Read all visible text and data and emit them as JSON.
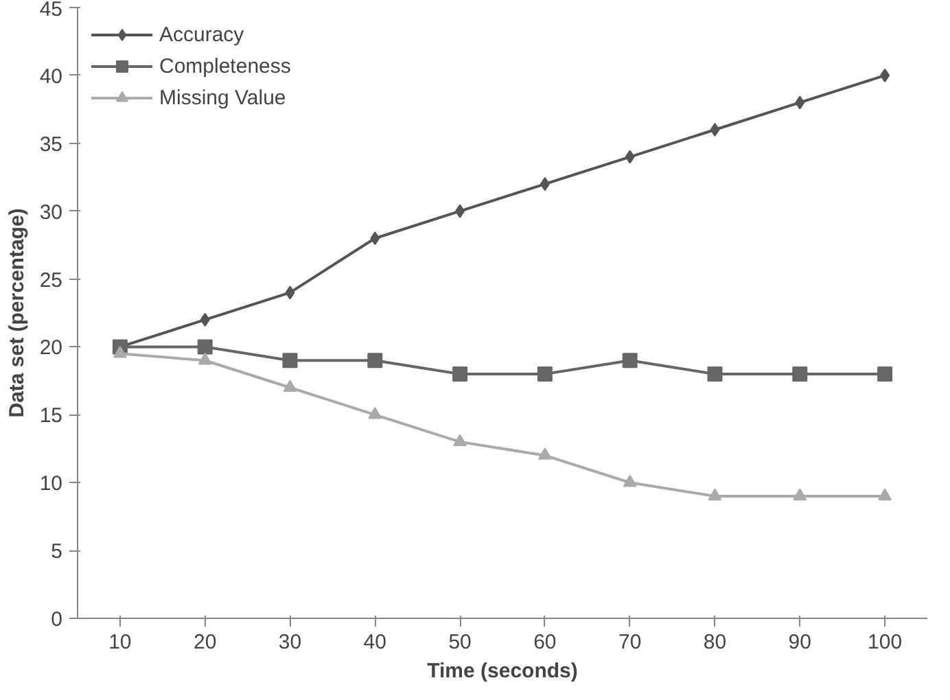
{
  "chart_data": {
    "type": "line",
    "xlabel": "Time (seconds)",
    "ylabel": "Data set (percentage)",
    "categories": [
      "10",
      "20",
      "30",
      "40",
      "50",
      "60",
      "70",
      "80",
      "90",
      "100"
    ],
    "ylim": [
      0,
      45
    ],
    "yticks": [
      0,
      5,
      10,
      15,
      20,
      25,
      30,
      35,
      40,
      45
    ],
    "grid": false,
    "legend": "top left",
    "series": [
      {
        "name": "Accuracy",
        "color": "#555555",
        "marker": "diamond",
        "values": [
          20,
          22,
          24,
          28,
          30,
          32,
          34,
          36,
          38,
          40
        ]
      },
      {
        "name": "Completeness",
        "color": "#666666",
        "marker": "square",
        "values": [
          20,
          20,
          19,
          19,
          18,
          18,
          19,
          18,
          18,
          18
        ]
      },
      {
        "name": "Missing Value",
        "color": "#aaaaaa",
        "marker": "triangle",
        "values": [
          19.5,
          19,
          17,
          15,
          13,
          12,
          10,
          9,
          9,
          9
        ]
      }
    ]
  }
}
